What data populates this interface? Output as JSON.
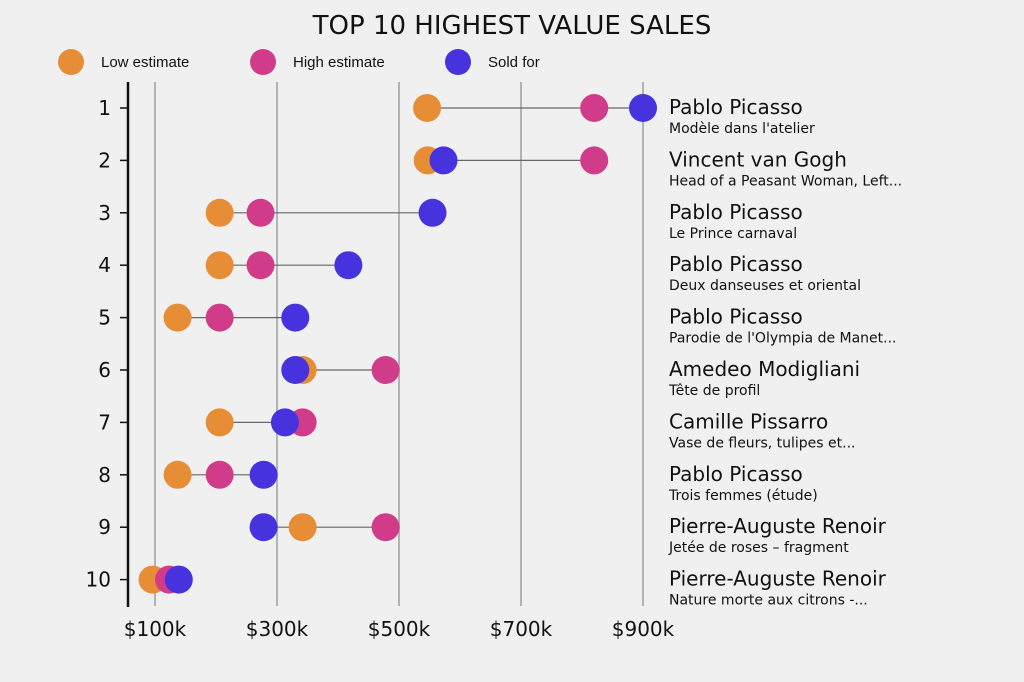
{
  "chart_data": {
    "type": "dumbbell",
    "title": "TOP 10 HIGHEST VALUE SALES",
    "xlabel": "",
    "ylabel": "",
    "xlim": [
      55.7,
      960
    ],
    "x_unit": "thousand USD",
    "grid": "vertical",
    "legend_position": "top-left",
    "x_ticks": [
      100,
      300,
      500,
      700,
      900
    ],
    "x_tick_labels": [
      "$100k",
      "$300k",
      "$500k",
      "$700k",
      "$900k"
    ],
    "categories": [
      "1",
      "2",
      "3",
      "4",
      "5",
      "6",
      "7",
      "8",
      "9",
      "10"
    ],
    "colors": {
      "low": "#e68d35",
      "high": "#d03b8a",
      "sold": "#4633dd"
    },
    "series": [
      {
        "key": "low",
        "name": "Low estimate",
        "values": [
          546,
          547,
          206,
          206,
          137,
          342,
          206,
          137,
          342,
          96
        ]
      },
      {
        "key": "high",
        "name": "High estimate",
        "values": [
          820,
          820,
          273,
          273,
          206,
          478,
          342,
          206,
          478,
          123
        ]
      },
      {
        "key": "sold",
        "name": "Sold for",
        "values": [
          900,
          573,
          555,
          417,
          330,
          330,
          313,
          278,
          278,
          139
        ]
      }
    ],
    "labels": [
      {
        "artist": "Pablo Picasso",
        "work": "Modèle dans l'atelier"
      },
      {
        "artist": "Vincent van Gogh",
        "work": "Head of a Peasant Woman, Left..."
      },
      {
        "artist": "Pablo Picasso",
        "work": "Le Prince carnaval"
      },
      {
        "artist": "Pablo Picasso",
        "work": "Deux danseuses et oriental"
      },
      {
        "artist": "Pablo Picasso",
        "work": "Parodie de l'Olympia de Manet..."
      },
      {
        "artist": "Amedeo Modigliani",
        "work": "Tête de profil"
      },
      {
        "artist": "Camille Pissarro",
        "work": "Vase de fleurs, tulipes et..."
      },
      {
        "artist": "Pablo Picasso",
        "work": "Trois femmes (étude)"
      },
      {
        "artist": "Pierre-Auguste Renoir",
        "work": "Jetée de roses – fragment"
      },
      {
        "artist": "Pierre-Auguste Renoir",
        "work": "Nature morte aux citrons -..."
      }
    ]
  }
}
